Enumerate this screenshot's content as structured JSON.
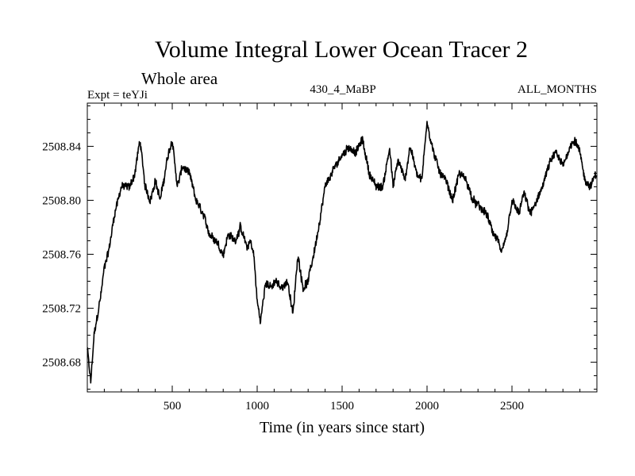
{
  "chart_data": {
    "type": "line",
    "title": "Volume Integral Lower Ocean Tracer 2",
    "subtitle": "Whole area",
    "left_label": "Expt = teYJi",
    "center_label": "430_4_MaBP",
    "right_label": "ALL_MONTHS",
    "xlabel": "Time (in years since start)",
    "ylabel": "",
    "xlim": [
      0,
      3000
    ],
    "ylim": [
      2508.658,
      2508.872
    ],
    "x_ticks": [
      500,
      1000,
      1500,
      2000,
      2500
    ],
    "x_tick_labels": [
      "500",
      "1000",
      "1500",
      "2000",
      "2500"
    ],
    "y_ticks": [
      2508.68,
      2508.72,
      2508.76,
      2508.8,
      2508.84
    ],
    "y_tick_labels": [
      "2508.68",
      "2508.72",
      "2508.76",
      "2508.80",
      "2508.84"
    ],
    "noise_amplitude": 0.006,
    "series": [
      {
        "name": "Lower Ocean Tracer 2",
        "color": "#000000",
        "x": [
          0,
          20,
          40,
          60,
          80,
          100,
          130,
          160,
          200,
          250,
          280,
          310,
          340,
          370,
          400,
          430,
          470,
          500,
          530,
          560,
          600,
          640,
          680,
          720,
          760,
          800,
          830,
          870,
          900,
          940,
          960,
          980,
          1000,
          1020,
          1050,
          1080,
          1110,
          1140,
          1180,
          1210,
          1240,
          1270,
          1300,
          1340,
          1370,
          1400,
          1440,
          1480,
          1510,
          1540,
          1580,
          1620,
          1660,
          1700,
          1740,
          1780,
          1800,
          1830,
          1870,
          1900,
          1940,
          1970,
          2000,
          2020,
          2050,
          2080,
          2110,
          2150,
          2190,
          2230,
          2270,
          2310,
          2350,
          2390,
          2420,
          2440,
          2470,
          2500,
          2540,
          2570,
          2610,
          2650,
          2690,
          2730,
          2760,
          2800,
          2840,
          2870,
          2900,
          2930,
          2960,
          3000
        ],
        "values": [
          2508.69,
          2508.665,
          2508.7,
          2508.715,
          2508.73,
          2508.75,
          2508.765,
          2508.79,
          2508.81,
          2508.81,
          2508.82,
          2508.845,
          2508.81,
          2508.8,
          2508.815,
          2508.8,
          2508.83,
          2508.845,
          2508.81,
          2508.825,
          2508.82,
          2508.8,
          2508.79,
          2508.775,
          2508.77,
          2508.76,
          2508.775,
          2508.77,
          2508.78,
          2508.765,
          2508.77,
          2508.76,
          2508.725,
          2508.71,
          2508.74,
          2508.735,
          2508.74,
          2508.735,
          2508.74,
          2508.715,
          2508.76,
          2508.735,
          2508.74,
          2508.765,
          2508.785,
          2508.81,
          2508.82,
          2508.83,
          2508.835,
          2508.84,
          2508.835,
          2508.845,
          2508.82,
          2508.81,
          2508.81,
          2508.84,
          2508.81,
          2508.83,
          2508.815,
          2508.84,
          2508.82,
          2508.815,
          2508.86,
          2508.845,
          2508.83,
          2508.82,
          2508.815,
          2508.8,
          2508.82,
          2508.815,
          2508.8,
          2508.795,
          2508.79,
          2508.775,
          2508.77,
          2508.76,
          2508.775,
          2508.8,
          2508.79,
          2508.805,
          2508.79,
          2508.8,
          2508.815,
          2508.83,
          2508.835,
          2508.825,
          2508.84,
          2508.845,
          2508.835,
          2508.815,
          2508.81,
          2508.82
        ]
      }
    ]
  }
}
